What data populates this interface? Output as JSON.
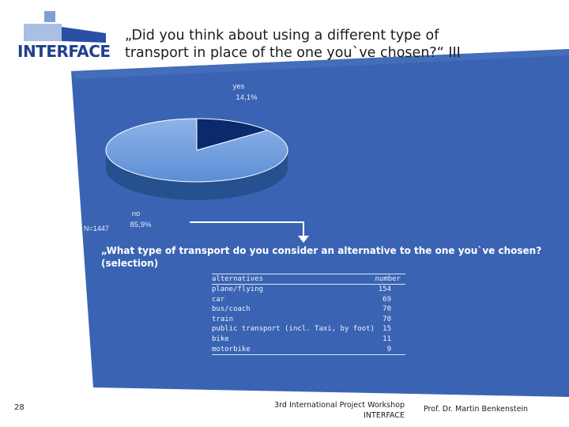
{
  "header": {
    "logo_text": "INTERFACE",
    "title_line1": "„Did you think about using a different type of",
    "title_line2": "transport in place of the one you`ve chosen?“ III"
  },
  "chart_data": {
    "type": "pie",
    "title": "„Did you think about using a different type of transport in place of the one you`ve chosen?“ III",
    "categories": [
      "yes",
      "no"
    ],
    "values": [
      14.1,
      85.9
    ],
    "value_labels": [
      "14,1%",
      "85,9%"
    ],
    "colors": [
      "#0b2a6e",
      "#5b8ed6"
    ],
    "sample_size": "N=1447"
  },
  "question": {
    "text": "„What type of transport do you consider an alternative to the one you`ve chosen? (selection)"
  },
  "table": {
    "headers": [
      "alternatives",
      "number"
    ],
    "rows": [
      [
        "plane/flying",
        "154"
      ],
      [
        "car",
        "69"
      ],
      [
        "bus/coach",
        "70"
      ],
      [
        "train",
        "70"
      ],
      [
        "public transport (incl. Taxi, by foot)",
        "15"
      ],
      [
        "bike",
        "11"
      ],
      [
        "motorbike",
        "9"
      ]
    ]
  },
  "footer": {
    "page_number": "28",
    "event_line1": "3rd International Project Workshop",
    "event_line2": "INTERFACE",
    "author": "Prof. Dr. Martin Benkenstein"
  },
  "colors": {
    "panel_blue": "#3a64b3",
    "logo_blue": "#1f3f8f"
  }
}
